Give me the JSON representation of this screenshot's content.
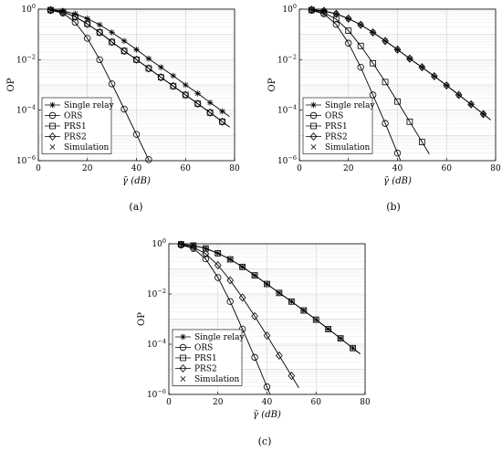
{
  "chart_data": [
    {
      "type": "line",
      "caption": "(a)",
      "xlabel": "γ̄ (dB)",
      "ylabel": "OP",
      "xlim": [
        0,
        80
      ],
      "ylim": [
        1e-06,
        1
      ],
      "yscale": "log",
      "xticks": [
        "0",
        "20",
        "40",
        "60",
        "80"
      ],
      "yticks": [
        "10^0",
        "10^-2",
        "10^-4",
        "10^-6"
      ],
      "grid": true,
      "legend_position": "bottom-left",
      "x": [
        5,
        10,
        15,
        20,
        25,
        30,
        35,
        40,
        45,
        50,
        55,
        60,
        65,
        70,
        75
      ],
      "series": [
        {
          "name": "Single relay",
          "marker": "star",
          "values": [
            0.95,
            0.85,
            0.65,
            0.42,
            0.24,
            0.12,
            0.055,
            0.025,
            0.011,
            0.005,
            0.0023,
            0.001,
            0.00046,
            0.0002,
            9e-05
          ]
        },
        {
          "name": "ORS",
          "marker": "circle",
          "values": [
            0.9,
            0.7,
            0.3,
            0.07,
            0.01,
            0.0011,
            0.00011,
            1.1e-05,
            1.1e-06,
            null,
            null,
            null,
            null,
            null,
            null
          ]
        },
        {
          "name": "PRS1",
          "marker": "square",
          "values": [
            0.92,
            0.78,
            0.5,
            0.26,
            0.12,
            0.05,
            0.022,
            0.01,
            0.0045,
            0.002,
            0.0009,
            0.0004,
            0.00018,
            8e-05,
            3.5e-05
          ]
        },
        {
          "name": "PRS2",
          "marker": "diamond",
          "values": [
            0.92,
            0.78,
            0.5,
            0.26,
            0.12,
            0.05,
            0.022,
            0.01,
            0.0045,
            0.002,
            0.0009,
            0.0004,
            0.00018,
            8e-05,
            3.5e-05
          ]
        }
      ],
      "simulation_label": "Simulation"
    },
    {
      "type": "line",
      "caption": "(b)",
      "xlabel": "γ̄ (dB)",
      "ylabel": "OP",
      "xlim": [
        0,
        80
      ],
      "ylim": [
        1e-06,
        1
      ],
      "yscale": "log",
      "xticks": [
        "0",
        "20",
        "40",
        "60",
        "80"
      ],
      "yticks": [
        "10^0",
        "10^-2",
        "10^-4",
        "10^-6"
      ],
      "grid": true,
      "legend_position": "top-right",
      "x": [
        5,
        10,
        15,
        20,
        25,
        30,
        35,
        40,
        45,
        50,
        55,
        60,
        65,
        70,
        75
      ],
      "series": [
        {
          "name": "Single relay",
          "marker": "star",
          "values": [
            0.95,
            0.85,
            0.65,
            0.42,
            0.24,
            0.12,
            0.055,
            0.025,
            0.011,
            0.005,
            0.0022,
            0.00095,
            0.0004,
            0.00017,
            7e-05
          ]
        },
        {
          "name": "ORS",
          "marker": "circle",
          "values": [
            0.9,
            0.65,
            0.25,
            0.045,
            0.005,
            0.0004,
            3e-05,
            2e-06,
            null,
            null,
            null,
            null,
            null,
            null,
            null
          ]
        },
        {
          "name": "PRS1",
          "marker": "square",
          "values": [
            0.92,
            0.72,
            0.4,
            0.14,
            0.035,
            0.0072,
            0.0013,
            0.00022,
            3.5e-05,
            5.5e-06,
            null,
            null,
            null,
            null,
            null
          ]
        },
        {
          "name": "PRS2",
          "marker": "diamond",
          "values": [
            0.95,
            0.85,
            0.65,
            0.42,
            0.24,
            0.12,
            0.055,
            0.025,
            0.011,
            0.005,
            0.0022,
            0.00095,
            0.0004,
            0.00017,
            7e-05
          ]
        }
      ],
      "simulation_label": "Simulation"
    },
    {
      "type": "line",
      "caption": "(c)",
      "xlabel": "γ̄ (dB)",
      "ylabel": "OP",
      "xlim": [
        0,
        80
      ],
      "ylim": [
        1e-06,
        1
      ],
      "yscale": "log",
      "xticks": [
        "0",
        "20",
        "40",
        "60",
        "80"
      ],
      "yticks": [
        "10^0",
        "10^-2",
        "10^-4",
        "10^-6"
      ],
      "grid": true,
      "legend_position": "bottom-left",
      "x": [
        5,
        10,
        15,
        20,
        25,
        30,
        35,
        40,
        45,
        50,
        55,
        60,
        65,
        70,
        75
      ],
      "series": [
        {
          "name": "Single relay",
          "marker": "star",
          "values": [
            0.95,
            0.85,
            0.65,
            0.42,
            0.24,
            0.12,
            0.055,
            0.025,
            0.011,
            0.005,
            0.0022,
            0.00095,
            0.0004,
            0.00017,
            7e-05
          ]
        },
        {
          "name": "ORS",
          "marker": "circle",
          "values": [
            0.9,
            0.65,
            0.25,
            0.045,
            0.005,
            0.0004,
            3e-05,
            2e-06,
            null,
            null,
            null,
            null,
            null,
            null,
            null
          ]
        },
        {
          "name": "PRS1",
          "marker": "square",
          "values": [
            0.95,
            0.85,
            0.65,
            0.42,
            0.24,
            0.12,
            0.055,
            0.025,
            0.011,
            0.005,
            0.0022,
            0.00095,
            0.0004,
            0.00017,
            7e-05
          ]
        },
        {
          "name": "PRS2",
          "marker": "diamond",
          "values": [
            0.92,
            0.72,
            0.4,
            0.14,
            0.035,
            0.0072,
            0.0013,
            0.00022,
            3.5e-05,
            5.5e-06,
            null,
            null,
            null,
            null,
            null
          ]
        }
      ],
      "simulation_label": "Simulation"
    }
  ]
}
